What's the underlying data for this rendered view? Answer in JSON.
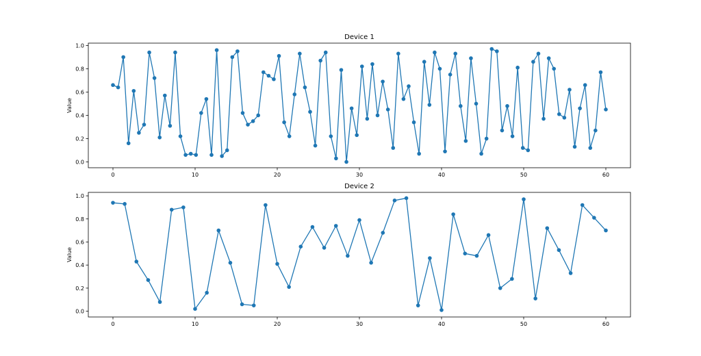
{
  "chart_data": [
    {
      "type": "line",
      "title": "Device 1",
      "xlabel": "",
      "ylabel": "Value",
      "xlim": [
        -3,
        63
      ],
      "ylim": [
        -0.05,
        1.02
      ],
      "xticks": [
        0,
        10,
        20,
        30,
        40,
        50,
        60
      ],
      "yticks": [
        0.0,
        0.2,
        0.4,
        0.6,
        0.8,
        1.0
      ],
      "grid": false,
      "marker": "circle",
      "color": "#1f77b4",
      "x_start": 0,
      "x_end": 60,
      "values": [
        0.66,
        0.64,
        0.9,
        0.16,
        0.61,
        0.25,
        0.32,
        0.94,
        0.72,
        0.21,
        0.57,
        0.31,
        0.94,
        0.22,
        0.06,
        0.07,
        0.06,
        0.42,
        0.54,
        0.06,
        0.96,
        0.05,
        0.1,
        0.9,
        0.95,
        0.42,
        0.32,
        0.35,
        0.4,
        0.77,
        0.74,
        0.71,
        0.91,
        0.34,
        0.22,
        0.58,
        0.93,
        0.64,
        0.43,
        0.14,
        0.87,
        0.94,
        0.22,
        0.03,
        0.79,
        0.0,
        0.46,
        0.23,
        0.82,
        0.37,
        0.84,
        0.4,
        0.69,
        0.45,
        0.12,
        0.93,
        0.54,
        0.65,
        0.34,
        0.07,
        0.86,
        0.49,
        0.94,
        0.8,
        0.09,
        0.75,
        0.93,
        0.48,
        0.18,
        0.89,
        0.5,
        0.07,
        0.2,
        0.97,
        0.95,
        0.27,
        0.48,
        0.22,
        0.81,
        0.12,
        0.1,
        0.86,
        0.93,
        0.37,
        0.89,
        0.8,
        0.41,
        0.38,
        0.62,
        0.13,
        0.46,
        0.66,
        0.12,
        0.27,
        0.77,
        0.45
      ]
    },
    {
      "type": "line",
      "title": "Device 2",
      "xlabel": "",
      "ylabel": "Value",
      "xlim": [
        -3,
        63
      ],
      "ylim": [
        -0.05,
        1.03
      ],
      "xticks": [
        0,
        10,
        20,
        30,
        40,
        50,
        60
      ],
      "yticks": [
        0.0,
        0.2,
        0.4,
        0.6,
        0.8,
        1.0
      ],
      "grid": false,
      "marker": "circle",
      "color": "#1f77b4",
      "x_start": 0,
      "x_end": 60,
      "values": [
        0.94,
        0.93,
        0.43,
        0.27,
        0.08,
        0.88,
        0.9,
        0.02,
        0.16,
        0.7,
        0.42,
        0.06,
        0.05,
        0.92,
        0.41,
        0.21,
        0.56,
        0.73,
        0.55,
        0.74,
        0.48,
        0.79,
        0.42,
        0.68,
        0.96,
        0.98,
        0.05,
        0.46,
        0.01,
        0.84,
        0.5,
        0.48,
        0.66,
        0.2,
        0.28,
        0.97,
        0.11,
        0.72,
        0.53,
        0.33,
        0.92,
        0.81,
        0.7
      ]
    }
  ]
}
